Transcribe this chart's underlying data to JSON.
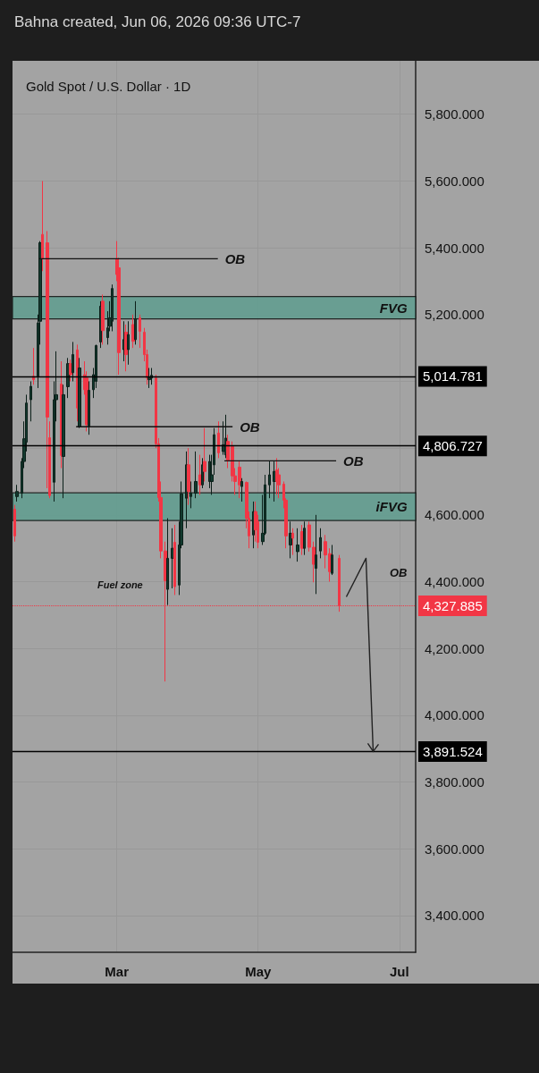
{
  "chart_data": {
    "type": "candlestick",
    "title": "Gold Spot / U.S. Dollar · 1D",
    "subtitle": "Bahna created, Jun 06, 2026 09:36 UTC-7",
    "x": [
      "2026-01-16",
      "2026-01-17",
      "2026-01-19",
      "2026-01-20",
      "2026-01-21",
      "2026-01-23",
      "2026-01-24",
      "2026-01-26",
      "2026-01-27",
      "2026-01-28",
      "2026-01-30",
      "2026-01-31",
      "2026-02-02",
      "2026-02-03",
      "2026-02-05",
      "2026-02-06",
      "2026-02-08",
      "2026-02-09",
      "2026-02-10",
      "2026-02-12",
      "2026-02-13",
      "2026-02-15",
      "2026-02-16",
      "2026-02-17",
      "2026-02-19",
      "2026-02-20",
      "2026-02-22",
      "2026-02-23",
      "2026-02-25",
      "2026-02-26",
      "2026-02-27",
      "2026-03-01",
      "2026-03-02",
      "2026-03-04",
      "2026-03-05",
      "2026-03-06",
      "2026-03-08",
      "2026-03-09",
      "2026-03-11",
      "2026-03-13",
      "2026-03-14",
      "2026-03-15",
      "2026-03-16",
      "2026-03-18",
      "2026-03-19",
      "2026-03-20",
      "2026-03-22",
      "2026-03-23",
      "2026-03-25",
      "2026-03-26",
      "2026-03-28",
      "2026-03-29",
      "2026-03-31",
      "2026-04-01",
      "2026-04-02",
      "2026-04-04",
      "2026-04-06",
      "2026-04-07",
      "2026-04-08",
      "2026-04-10",
      "2026-04-11",
      "2026-04-12",
      "2026-04-14",
      "2026-04-16",
      "2026-04-17",
      "2026-04-18",
      "2026-04-20",
      "2026-04-21",
      "2026-04-23",
      "2026-04-24",
      "2026-04-26",
      "2026-04-27",
      "2026-04-29",
      "2026-04-30",
      "2026-05-01",
      "2026-05-03",
      "2026-05-04",
      "2026-05-06",
      "2026-05-08",
      "2026-05-09",
      "2026-05-10",
      "2026-05-12",
      "2026-05-13",
      "2026-05-15",
      "2026-05-16",
      "2026-05-18",
      "2026-05-20",
      "2026-05-21",
      "2026-05-23",
      "2026-05-25",
      "2026-05-26",
      "2026-05-28",
      "2026-05-30",
      "2026-06-01",
      "2026-06-02",
      "2026-06-05"
    ],
    "ohlc": [
      [
        4617,
        4630,
        4520,
        4537
      ],
      [
        4655,
        4690,
        4640,
        4670
      ],
      [
        4665,
        4770,
        4650,
        4760
      ],
      [
        4760,
        4880,
        4740,
        4828
      ],
      [
        4818,
        4960,
        4790,
        4935
      ],
      [
        4945,
        5000,
        4880,
        4985
      ],
      [
        5015,
        5100,
        4990,
        5005
      ],
      [
        5015,
        5200,
        4980,
        5175
      ],
      [
        5180,
        5420,
        5110,
        5415
      ],
      [
        5440,
        5600,
        5330,
        5367
      ],
      [
        5415,
        5450,
        4680,
        4893
      ],
      [
        4831,
        4880,
        4650,
        4658
      ],
      [
        4698,
        5000,
        4640,
        4945
      ],
      [
        4945,
        5090,
        4880,
        4960
      ],
      [
        4992,
        5060,
        4740,
        4778
      ],
      [
        4775,
        4990,
        4650,
        4960
      ],
      [
        4984,
        5070,
        4950,
        5053
      ],
      [
        5053,
        5065,
        5000,
        5020
      ],
      [
        5026,
        5118,
        5000,
        5080
      ],
      [
        5094,
        5110,
        4880,
        4920
      ],
      [
        4864,
        5070,
        4860,
        5040
      ],
      [
        5020,
        5060,
        4960,
        4975
      ],
      [
        5010,
        5030,
        4850,
        4870
      ],
      [
        4866,
        5000,
        4840,
        4973
      ],
      [
        4975,
        5040,
        4950,
        5020
      ],
      [
        5000,
        5110,
        4980,
        5107
      ],
      [
        5118,
        5240,
        5100,
        5225
      ],
      [
        5240,
        5260,
        5110,
        5152
      ],
      [
        5131,
        5210,
        5110,
        5160
      ],
      [
        5165,
        5240,
        5150,
        5190
      ],
      [
        5180,
        5290,
        5150,
        5278
      ],
      [
        5367,
        5420,
        5300,
        5320
      ],
      [
        5340,
        5370,
        5020,
        5086
      ],
      [
        5095,
        5180,
        5060,
        5125
      ],
      [
        5147,
        5170,
        5030,
        5080
      ],
      [
        5095,
        5180,
        5050,
        5140
      ],
      [
        5170,
        5200,
        5100,
        5120
      ],
      [
        5125,
        5240,
        5110,
        5187
      ],
      [
        5190,
        5200,
        5100,
        5150
      ],
      [
        5147,
        5160,
        5060,
        5080
      ],
      [
        5080,
        5095,
        4990,
        5010
      ],
      [
        5005,
        5040,
        4980,
        5012
      ],
      [
        5010,
        5040,
        4990,
        5018
      ],
      [
        5010,
        5020,
        4800,
        4813
      ],
      [
        4813,
        4830,
        4640,
        4652
      ],
      [
        4652,
        4700,
        4470,
        4492
      ],
      [
        4492,
        4520,
        4101,
        4403
      ],
      [
        4377,
        4590,
        4330,
        4470
      ],
      [
        4470,
        4560,
        4380,
        4500
      ],
      [
        4518,
        4570,
        4360,
        4385
      ],
      [
        4390,
        4580,
        4360,
        4510
      ],
      [
        4510,
        4700,
        4500,
        4663
      ],
      [
        4650,
        4790,
        4560,
        4750
      ],
      [
        4750,
        4800,
        4630,
        4670
      ],
      [
        4655,
        4700,
        4620,
        4665
      ],
      [
        4665,
        4790,
        4650,
        4700
      ],
      [
        4720,
        4780,
        4660,
        4690
      ],
      [
        4690,
        4770,
        4680,
        4750
      ],
      [
        4760,
        4860,
        4700,
        4730
      ],
      [
        4700,
        4780,
        4680,
        4760
      ],
      [
        4700,
        4780,
        4660,
        4720
      ],
      [
        4750,
        4860,
        4720,
        4840
      ],
      [
        4845,
        4880,
        4770,
        4786
      ],
      [
        4790,
        4880,
        4780,
        4810
      ],
      [
        4780,
        4900,
        4770,
        4830
      ],
      [
        4820,
        4840,
        4740,
        4762
      ],
      [
        4805,
        4820,
        4700,
        4717
      ],
      [
        4717,
        4740,
        4660,
        4700
      ],
      [
        4743,
        4760,
        4650,
        4690
      ],
      [
        4685,
        4710,
        4640,
        4700
      ],
      [
        4697,
        4700,
        4560,
        4590
      ],
      [
        4590,
        4610,
        4500,
        4537
      ],
      [
        4540,
        4640,
        4500,
        4610
      ],
      [
        4610,
        4640,
        4520,
        4555
      ],
      [
        4580,
        4600,
        4500,
        4518
      ],
      [
        4520,
        4660,
        4510,
        4545
      ],
      [
        4545,
        4720,
        4540,
        4690
      ],
      [
        4690,
        4760,
        4650,
        4720
      ],
      [
        4700,
        4760,
        4640,
        4730
      ],
      [
        4735,
        4770,
        4660,
        4700
      ],
      [
        4720,
        4740,
        4650,
        4690
      ],
      [
        4692,
        4700,
        4620,
        4644
      ],
      [
        4644,
        4650,
        4500,
        4537
      ],
      [
        4510,
        4580,
        4470,
        4545
      ],
      [
        4545,
        4560,
        4480,
        4530
      ],
      [
        4490,
        4560,
        4460,
        4510
      ],
      [
        4550,
        4570,
        4480,
        4500
      ],
      [
        4500,
        4580,
        4480,
        4560
      ],
      [
        4570,
        4580,
        4490,
        4503
      ],
      [
        4503,
        4520,
        4398,
        4452
      ],
      [
        4440,
        4600,
        4363,
        4480
      ],
      [
        4492,
        4560,
        4470,
        4532
      ],
      [
        4520,
        4540,
        4440,
        4480
      ],
      [
        4484,
        4500,
        4400,
        4430
      ],
      [
        4425,
        4510,
        4420,
        4480
      ],
      [
        4470,
        4480,
        4310,
        4327.885
      ]
    ],
    "xlim": [
      "2026-01-15",
      "2026-07-08"
    ],
    "xticks": [
      {
        "value": "2026-03-01",
        "label": "Mar"
      },
      {
        "value": "2026-05-01",
        "label": "May"
      },
      {
        "value": "2026-07-01",
        "label": "Jul"
      }
    ],
    "ylim": [
      3290,
      5960
    ],
    "yticks": [
      {
        "value": 3400,
        "label": "3,400.000"
      },
      {
        "value": 3600,
        "label": "3,600.000"
      },
      {
        "value": 3800,
        "label": "3,800.000"
      },
      {
        "value": 4000,
        "label": "4,000.000"
      },
      {
        "value": 4200,
        "label": "4,200.000"
      },
      {
        "value": 4400,
        "label": "4,400.000"
      },
      {
        "value": 4600,
        "label": "4,600.000"
      },
      {
        "value": 4800,
        "label": null
      },
      {
        "value": 5000,
        "label": null
      },
      {
        "value": 5200,
        "label": "5,200.000"
      },
      {
        "value": 5400,
        "label": "5,400.000"
      },
      {
        "value": 5600,
        "label": "5,600.000"
      },
      {
        "value": 5800,
        "label": "5,800.000"
      }
    ],
    "grid": true,
    "ref_lines": [
      {
        "axis": "y",
        "value": 5014.781,
        "label": "5,014.781",
        "color": "#000000",
        "line_style": "solid"
      },
      {
        "axis": "y",
        "value": 4806.727,
        "label": "4,806.727",
        "color": "#000000",
        "line_style": "solid"
      },
      {
        "axis": "y",
        "value": 4327.885,
        "label": "4,327.885",
        "color": "#f23645",
        "line_style": "dotted"
      },
      {
        "axis": "y",
        "value": 3891.524,
        "label": "3,891.524",
        "color": "#000000",
        "line_style": "solid"
      }
    ],
    "bands": [
      {
        "axis": "y",
        "from": 5187,
        "to": 5254,
        "label": "FVG",
        "color": "#5f9e8f"
      },
      {
        "axis": "y",
        "from": 4583,
        "to": 4666,
        "label": "iFVG",
        "color": "#5f9e8f"
      }
    ],
    "annotations": [
      {
        "text": "OB",
        "x": "2026-01-28",
        "y": 5367
      },
      {
        "text": "OB",
        "x": "2026-02-13",
        "y": 4864
      },
      {
        "text": "OB",
        "x": "2026-04-18",
        "y": 4762
      },
      "OB",
      "Fuel zone"
    ]
  }
}
